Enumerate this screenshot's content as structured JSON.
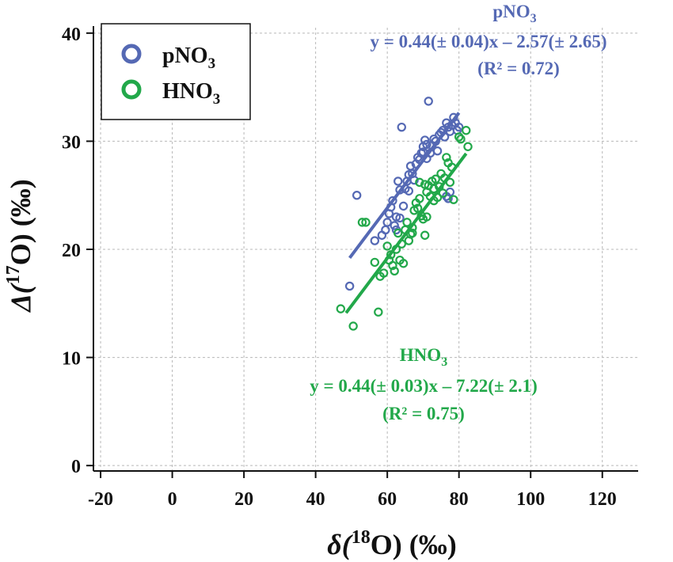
{
  "chart_data": {
    "type": "scatter",
    "x_axis": {
      "label_prefix": "δ(",
      "label_sup": "18",
      "label_suffix": "O) (‰)",
      "range": [
        -22,
        130
      ],
      "ticks": [
        -20,
        0,
        20,
        40,
        60,
        80,
        100,
        120
      ],
      "tick_labels": [
        "-20",
        "0",
        "20",
        "40",
        "60",
        "80",
        "100",
        "120"
      ]
    },
    "y_axis": {
      "label_prefix": "Δ(",
      "label_sup": "17",
      "label_suffix": "O) (‰)",
      "range": [
        -0.5,
        40.5
      ],
      "ticks": [
        0,
        10,
        20,
        30,
        40
      ],
      "tick_labels": [
        "0",
        "10",
        "20",
        "30",
        "40"
      ]
    },
    "grid": true,
    "legend": {
      "placement": "top-left",
      "entries": [
        {
          "base": "pNO",
          "sub": "3",
          "color": "#5569b4"
        },
        {
          "base": "HNO",
          "sub": "3",
          "color": "#22a84a"
        }
      ]
    },
    "series": [
      {
        "name": "pNO3",
        "color": "#5569b4",
        "fit": {
          "slope": 0.44,
          "intercept": -2.57,
          "x_range": [
            49.5,
            80
          ]
        },
        "annotation": {
          "title_base": "pNO",
          "title_sub": "3",
          "equation": "y = 0.44(± 0.04)x – 2.57(± 2.65)",
          "r2": "(R² = 0.72)"
        },
        "points": [
          [
            49.5,
            16.6
          ],
          [
            51.5,
            25.0
          ],
          [
            56.5,
            20.8
          ],
          [
            58.5,
            21.3
          ],
          [
            59.5,
            21.8
          ],
          [
            60,
            22.5
          ],
          [
            60.5,
            23.3
          ],
          [
            61,
            23.9
          ],
          [
            61.5,
            24.5
          ],
          [
            62,
            22.2
          ],
          [
            62.5,
            23.0
          ],
          [
            63,
            26.3
          ],
          [
            63.5,
            25.5
          ],
          [
            64,
            31.3
          ],
          [
            64.5,
            24.0
          ],
          [
            65,
            25.6
          ],
          [
            65.5,
            26.3
          ],
          [
            66,
            26.9
          ],
          [
            66.5,
            27.7
          ],
          [
            67,
            27.0
          ],
          [
            67.5,
            26.4
          ],
          [
            68,
            27.9
          ],
          [
            68.5,
            28.5
          ],
          [
            69,
            28.3
          ],
          [
            69.5,
            28.9
          ],
          [
            70,
            29.5
          ],
          [
            70.5,
            30.1
          ],
          [
            71,
            29.7
          ],
          [
            71.5,
            33.7
          ],
          [
            72,
            28.9
          ],
          [
            72.5,
            29.6
          ],
          [
            73,
            30.2
          ],
          [
            73.5,
            30.0
          ],
          [
            74,
            29.1
          ],
          [
            74.5,
            30.6
          ],
          [
            75,
            30.8
          ],
          [
            75.5,
            31.0
          ],
          [
            76,
            30.4
          ],
          [
            76.5,
            31.7
          ],
          [
            77,
            31.3
          ],
          [
            77.5,
            30.9
          ],
          [
            78,
            31.5
          ],
          [
            78.5,
            32.2
          ],
          [
            79,
            31.7
          ],
          [
            79.5,
            31.0
          ],
          [
            80,
            31.3
          ],
          [
            77,
            24.7
          ],
          [
            77.5,
            25.3
          ],
          [
            76.5,
            24.9
          ],
          [
            63.5,
            22.9
          ],
          [
            62.5,
            21.8
          ],
          [
            70,
            29.0
          ],
          [
            71,
            28.4
          ],
          [
            66,
            25.4
          ]
        ]
      },
      {
        "name": "HNO3",
        "color": "#22a84a",
        "fit": {
          "slope": 0.44,
          "intercept": -7.22,
          "x_range": [
            48.5,
            82
          ]
        },
        "annotation": {
          "title_base": "HNO",
          "title_sub": "3",
          "equation": "y = 0.44(± 0.03)x – 7.22(± 2.1)",
          "r2": "(R² = 0.75)"
        },
        "points": [
          [
            47,
            14.5
          ],
          [
            50.5,
            12.9
          ],
          [
            53,
            22.5
          ],
          [
            54,
            22.5
          ],
          [
            56.5,
            18.8
          ],
          [
            57.5,
            14.2
          ],
          [
            58,
            17.5
          ],
          [
            59,
            17.8
          ],
          [
            60,
            20.3
          ],
          [
            61,
            19.5
          ],
          [
            61.5,
            18.5
          ],
          [
            62,
            18.0
          ],
          [
            62.5,
            20.0
          ],
          [
            63,
            21.5
          ],
          [
            63.5,
            19.0
          ],
          [
            64,
            20.5
          ],
          [
            64.5,
            18.7
          ],
          [
            65,
            21.8
          ],
          [
            65.5,
            22.5
          ],
          [
            66,
            20.8
          ],
          [
            66.5,
            21.4
          ],
          [
            67,
            22.0
          ],
          [
            67.5,
            23.6
          ],
          [
            68,
            24.3
          ],
          [
            68.5,
            23.8
          ],
          [
            69,
            24.7
          ],
          [
            69.5,
            23.1
          ],
          [
            70,
            22.8
          ],
          [
            70.5,
            26.0
          ],
          [
            71,
            25.3
          ],
          [
            71.5,
            25.9
          ],
          [
            72,
            24.9
          ],
          [
            72.5,
            26.3
          ],
          [
            73,
            25.6
          ],
          [
            73.5,
            26.5
          ],
          [
            74,
            24.8
          ],
          [
            74.5,
            25.8
          ],
          [
            75,
            27.0
          ],
          [
            75.5,
            25.2
          ],
          [
            76,
            26.6
          ],
          [
            76.5,
            28.5
          ],
          [
            77,
            28.0
          ],
          [
            77.5,
            26.2
          ],
          [
            78,
            27.6
          ],
          [
            78.5,
            24.6
          ],
          [
            80,
            30.4
          ],
          [
            82,
            31.0
          ],
          [
            82.5,
            29.5
          ],
          [
            80.5,
            30.2
          ],
          [
            70.5,
            21.3
          ],
          [
            67,
            21.5
          ],
          [
            71,
            23.0
          ],
          [
            69,
            26.2
          ],
          [
            73,
            24.5
          ],
          [
            60.5,
            19.0
          ]
        ]
      }
    ]
  }
}
